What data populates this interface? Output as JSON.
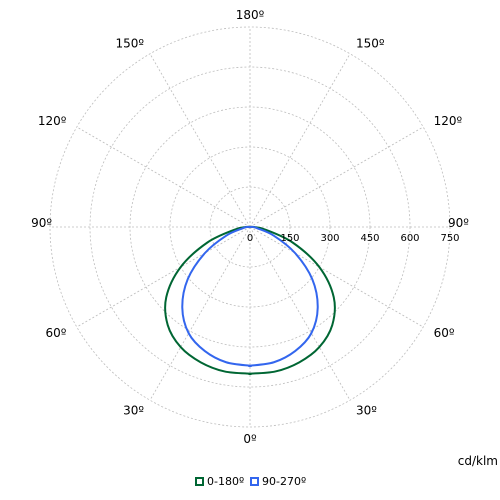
{
  "chart_data": {
    "type": "polar-line",
    "unit_label": "cd/klm",
    "radial_ticks": [
      0,
      150,
      300,
      450,
      600,
      750
    ],
    "r_max": 750,
    "angle_labels": [
      {
        "deg": 0,
        "label": "0º"
      },
      {
        "deg": 30,
        "label": "30º"
      },
      {
        "deg": 60,
        "label": "60º"
      },
      {
        "deg": 90,
        "label": "90º"
      },
      {
        "deg": 120,
        "label": "120º"
      },
      {
        "deg": 150,
        "label": "150º"
      },
      {
        "deg": 180,
        "label": "180º"
      },
      {
        "deg": -150,
        "label": "150º"
      },
      {
        "deg": -120,
        "label": "120º"
      },
      {
        "deg": -90,
        "label": "90º"
      },
      {
        "deg": -60,
        "label": "60º"
      },
      {
        "deg": -30,
        "label": "30º"
      }
    ],
    "angles": [
      0,
      10,
      20,
      30,
      40,
      50,
      60,
      70,
      80,
      90
    ],
    "series": [
      {
        "name": "0-180º",
        "color": "#006633",
        "values": [
          550,
          550,
          540,
          520,
          480,
          410,
          300,
          170,
          60,
          15
        ]
      },
      {
        "name": "90-270º",
        "color": "#3366ee",
        "values": [
          520,
          515,
          495,
          460,
          395,
          305,
          195,
          95,
          28,
          12
        ]
      }
    ],
    "legend_position": "bottom-center"
  }
}
